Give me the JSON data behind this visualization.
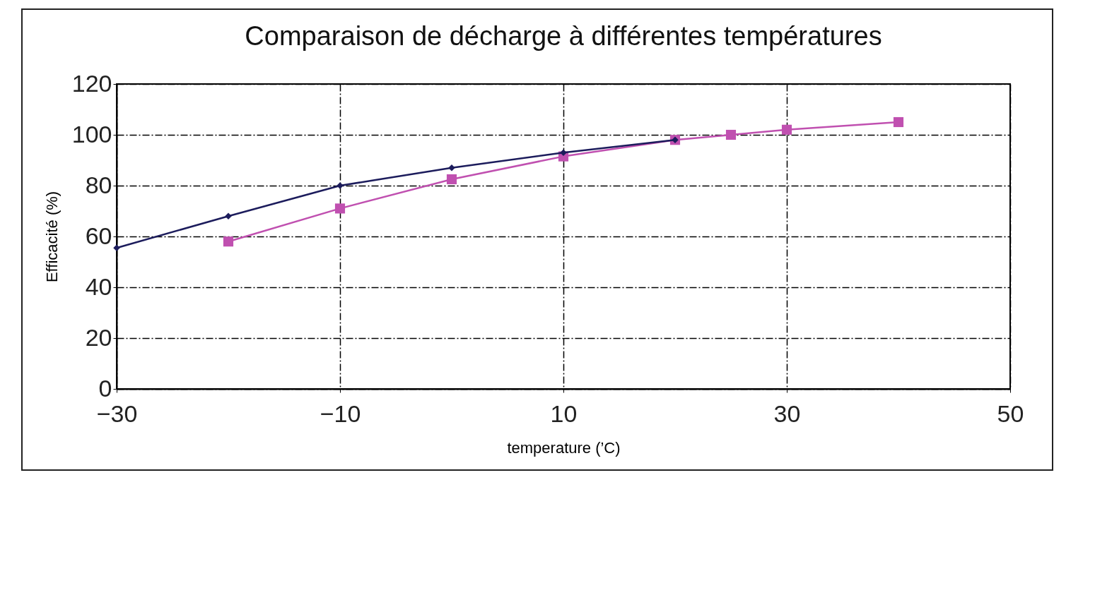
{
  "chart_data": {
    "type": "line",
    "title": "Comparaison de décharge à différentes températures",
    "xlabel": "temperature (’C)",
    "ylabel": "Efficacité  (%)",
    "xlim": [
      -30,
      50
    ],
    "xticks": [
      -30,
      -10,
      10,
      30,
      50
    ],
    "ylim": [
      0,
      120
    ],
    "yticks": [
      0,
      20,
      40,
      60,
      80,
      100,
      120
    ],
    "grid": true,
    "line_style": "solid",
    "series": [
      {
        "color": "#1c1c5c",
        "marker": "diamond",
        "x": [
          -30,
          -20,
          -10,
          0,
          10,
          20
        ],
        "values": [
          55.5,
          68,
          80,
          87,
          93,
          98
        ]
      },
      {
        "color": "#c050b0",
        "marker": "square",
        "x": [
          -20,
          -10,
          0,
          10,
          20,
          25,
          30,
          40
        ],
        "values": [
          58,
          71,
          82.5,
          91.5,
          98,
          100,
          102,
          105
        ]
      }
    ]
  }
}
